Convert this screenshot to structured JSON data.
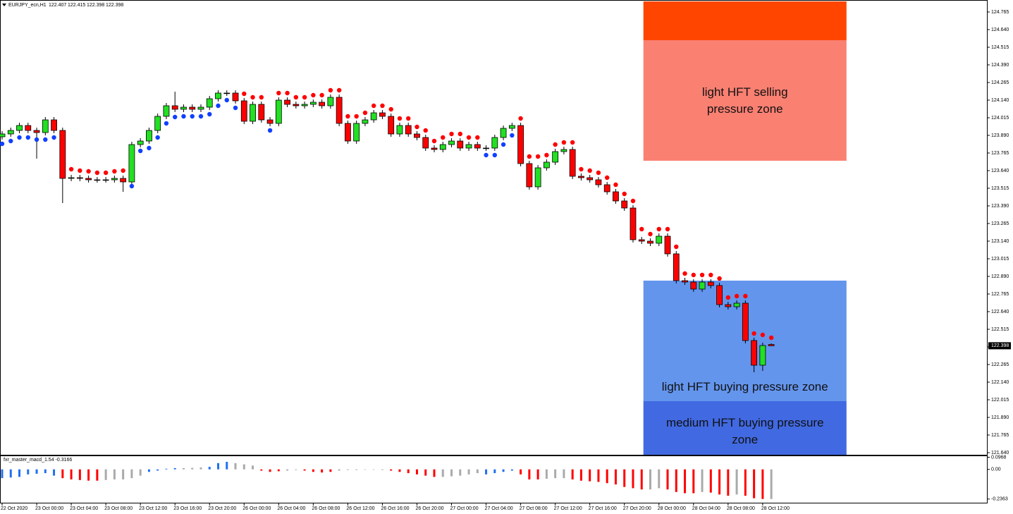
{
  "chart_data": [
    {
      "type": "candlestick",
      "title": "EURJPY_ecn,H1",
      "up_color": "#22e022",
      "down_color": "#ff0000",
      "open": [
        123.88,
        123.9,
        123.925,
        123.96,
        123.925,
        123.91,
        124.0,
        123.925,
        123.585,
        123.59,
        123.585,
        123.575,
        123.575,
        123.575,
        123.585,
        123.56,
        123.825,
        123.85,
        123.925,
        124.025,
        124.1,
        124.075,
        124.09,
        124.075,
        124.09,
        124.15,
        124.19,
        124.19,
        124.135,
        123.99,
        124.11,
        124.0,
        123.975,
        124.14,
        124.11,
        124.1,
        124.11,
        124.125,
        124.1,
        124.16,
        123.975,
        123.85,
        123.975,
        124.0,
        124.05,
        124.025,
        123.9,
        123.96,
        123.9,
        123.875,
        123.8,
        123.79,
        123.825,
        123.85,
        123.8,
        123.825,
        123.8,
        123.8,
        123.875,
        123.94,
        123.96,
        123.69,
        123.525,
        123.66,
        123.7,
        123.775,
        123.79,
        123.6,
        123.59,
        123.575,
        123.54,
        123.49,
        123.425,
        123.375,
        123.15,
        123.14,
        123.125,
        123.175,
        123.05,
        122.86,
        122.85,
        122.8,
        122.85,
        122.825,
        122.69,
        122.675,
        122.7,
        122.435,
        122.26,
        122.407
      ],
      "high": [
        123.92,
        123.945,
        123.98,
        123.98,
        123.945,
        124.02,
        124.02,
        123.945,
        123.61,
        123.61,
        123.605,
        123.595,
        123.595,
        123.605,
        123.605,
        123.845,
        123.87,
        123.945,
        124.045,
        124.12,
        124.2,
        124.11,
        124.11,
        124.11,
        124.17,
        124.21,
        124.21,
        124.21,
        124.155,
        124.13,
        124.13,
        124.02,
        124.16,
        124.16,
        124.13,
        124.13,
        124.145,
        124.145,
        124.18,
        124.18,
        123.995,
        123.995,
        124.02,
        124.07,
        124.07,
        124.045,
        123.98,
        123.98,
        123.92,
        123.895,
        123.82,
        123.845,
        123.87,
        123.87,
        123.845,
        123.845,
        123.82,
        123.895,
        123.96,
        123.98,
        123.98,
        123.71,
        123.68,
        123.72,
        123.795,
        123.81,
        123.81,
        123.62,
        123.61,
        123.595,
        123.56,
        123.51,
        123.445,
        123.395,
        123.17,
        123.16,
        123.195,
        123.195,
        123.07,
        122.88,
        122.87,
        122.87,
        122.87,
        122.845,
        122.71,
        122.72,
        122.72,
        122.455,
        122.42,
        122.415
      ],
      "low": [
        123.86,
        123.88,
        123.905,
        123.905,
        123.725,
        123.89,
        123.905,
        123.41,
        123.565,
        123.565,
        123.555,
        123.555,
        123.555,
        123.555,
        123.49,
        123.54,
        123.805,
        123.83,
        123.905,
        124.005,
        124.055,
        124.055,
        124.055,
        124.055,
        124.07,
        124.13,
        124.17,
        124.115,
        123.97,
        123.97,
        123.98,
        123.955,
        123.955,
        124.09,
        124.08,
        124.08,
        124.09,
        124.08,
        124.08,
        123.955,
        123.83,
        123.83,
        123.955,
        123.98,
        124.005,
        123.88,
        123.88,
        123.88,
        123.855,
        123.78,
        123.77,
        123.77,
        123.805,
        123.78,
        123.78,
        123.78,
        123.78,
        123.78,
        123.855,
        123.92,
        123.67,
        123.505,
        123.505,
        123.64,
        123.68,
        123.755,
        123.58,
        123.57,
        123.555,
        123.52,
        123.47,
        123.405,
        123.355,
        123.13,
        123.12,
        123.105,
        123.105,
        123.03,
        122.84,
        122.83,
        122.78,
        122.78,
        122.805,
        122.67,
        122.655,
        122.655,
        122.415,
        122.21,
        122.22,
        122.398
      ],
      "close": [
        123.9,
        123.925,
        123.96,
        123.925,
        123.91,
        124.0,
        123.925,
        123.585,
        123.59,
        123.585,
        123.575,
        123.575,
        123.575,
        123.585,
        123.56,
        123.825,
        123.85,
        123.925,
        124.025,
        124.1,
        124.075,
        124.09,
        124.075,
        124.09,
        124.15,
        124.19,
        124.19,
        124.135,
        123.99,
        124.11,
        124.0,
        123.975,
        124.14,
        124.11,
        124.1,
        124.11,
        124.125,
        124.1,
        124.16,
        123.975,
        123.85,
        123.975,
        124.0,
        124.05,
        124.025,
        123.9,
        123.96,
        123.9,
        123.875,
        123.8,
        123.79,
        123.825,
        123.85,
        123.8,
        123.825,
        123.8,
        123.8,
        123.875,
        123.94,
        123.96,
        123.69,
        123.525,
        123.66,
        123.7,
        123.775,
        123.79,
        123.6,
        123.59,
        123.575,
        123.54,
        123.49,
        123.425,
        123.375,
        123.15,
        123.14,
        123.125,
        123.175,
        123.05,
        122.86,
        122.85,
        122.8,
        122.85,
        122.825,
        122.69,
        122.675,
        122.7,
        122.435,
        122.26,
        122.4,
        122.398
      ],
      "dots": {
        "above_color": "#ff0000",
        "below_color": "#1040ff",
        "values": [
          123.83,
          123.85,
          123.875,
          123.875,
          123.86,
          123.86,
          123.875,
          123.78,
          123.65,
          123.64,
          123.635,
          123.625,
          123.625,
          123.635,
          123.64,
          123.53,
          123.78,
          123.8,
          123.875,
          123.975,
          124.02,
          124.025,
          124.025,
          124.025,
          124.04,
          124.1,
          124.14,
          124.085,
          124.185,
          124.16,
          124.16,
          123.925,
          124.19,
          124.19,
          124.16,
          124.16,
          124.175,
          124.175,
          124.21,
          124.21,
          124.025,
          124.025,
          124.05,
          124.1,
          124.1,
          124.075,
          124.01,
          124.01,
          123.95,
          123.925,
          123.85,
          123.875,
          123.9,
          123.9,
          123.875,
          123.875,
          123.75,
          123.75,
          123.825,
          123.89,
          124.01,
          123.74,
          123.74,
          123.75,
          123.825,
          123.84,
          123.84,
          123.65,
          123.64,
          123.625,
          123.59,
          123.54,
          123.475,
          123.425,
          123.225,
          123.19,
          123.225,
          123.225,
          123.1,
          122.91,
          122.9,
          122.9,
          122.9,
          122.875,
          122.74,
          122.75,
          122.75,
          122.485,
          122.475,
          122.455
        ]
      },
      "ylim": [
        121.625,
        124.85
      ],
      "yticks": [
        124.765,
        {
          "value": 124.64,
          "label": "124.640"
        },
        124.515,
        {
          "value": 124.39,
          "label": "124.390"
        },
        124.265,
        {
          "value": 124.14,
          "label": "124.140"
        },
        124.015,
        {
          "value": 123.89,
          "label": "123.890"
        },
        123.765,
        {
          "value": 123.64,
          "label": "123.640"
        },
        123.515,
        {
          "value": 123.39,
          "label": "123.390"
        },
        123.265,
        {
          "value": 123.14,
          "label": "123.140"
        },
        123.015,
        {
          "value": 122.89,
          "label": "122.890"
        },
        122.765,
        {
          "value": 122.64,
          "label": "122.640"
        },
        122.515,
        {
          "value": 122.39,
          "label": "122.390"
        },
        122.265,
        {
          "value": 122.14,
          "label": "122.140"
        },
        122.015,
        {
          "value": 121.89,
          "label": "121.890"
        },
        121.765,
        {
          "value": 121.64,
          "label": "121.640"
        }
      ],
      "xticks": [
        {
          "value": 0,
          "label": "22 Oct 2020"
        },
        {
          "value": 4,
          "label": "23 Oct 00:00"
        },
        {
          "value": 8,
          "label": "23 Oct 04:00"
        },
        {
          "value": 12,
          "label": "23 Oct 08:00"
        },
        {
          "value": 16,
          "label": "23 Oct 12:00"
        },
        {
          "value": 20,
          "label": "23 Oct 16:00"
        },
        {
          "value": 24,
          "label": "23 Oct 20:00"
        },
        {
          "value": 28,
          "label": "26 Oct 00:00"
        },
        {
          "value": 32,
          "label": "26 Oct 04:00"
        },
        {
          "value": 36,
          "label": "26 Oct 08:00"
        },
        {
          "value": 40,
          "label": "26 Oct 12:00"
        },
        {
          "value": 44,
          "label": "26 Oct 16:00"
        },
        {
          "value": 48,
          "label": "26 Oct 20:00"
        },
        {
          "value": 52,
          "label": "27 Oct 00:00"
        },
        {
          "value": 56,
          "label": "27 Oct 04:00"
        },
        {
          "value": 60,
          "label": "27 Oct 08:00"
        },
        {
          "value": 64,
          "label": "27 Oct 12:00"
        },
        {
          "value": 68,
          "label": "27 Oct 16:00"
        },
        {
          "value": 72,
          "label": "27 Oct 20:00"
        },
        {
          "value": 76,
          "label": "28 Oct 00:00"
        },
        {
          "value": 80,
          "label": "28 Oct 04:00"
        },
        {
          "value": 84,
          "label": "28 Oct 08:00"
        },
        {
          "value": 88,
          "label": "28 Oct 12:00"
        }
      ],
      "zones": [
        {
          "color": "#ff4500",
          "ylim": [
            124.565,
            124.84
          ],
          "xrange": [
            74.2,
            97.7
          ]
        },
        {
          "label": "light HFT selling pressure zone",
          "color": "#fa8072",
          "ylim": [
            123.71,
            124.565
          ],
          "xrange": [
            74.2,
            97.7
          ]
        },
        {
          "label": "light HFT buying pressure zone",
          "color": "#6495ed",
          "ylim": [
            122.005,
            122.86
          ],
          "xrange": [
            74.2,
            97.7
          ]
        },
        {
          "label": "medium HFT buying pressure zone",
          "color": "#4169e1",
          "ylim": [
            121.625,
            122.005
          ],
          "xrange": [
            74.2,
            97.7
          ]
        }
      ]
    },
    {
      "type": "bar",
      "title": "fxr_master_macd_1.54 -0.3166",
      "values": [
        -0.07,
        -0.065,
        -0.06,
        -0.04,
        -0.035,
        -0.03,
        -0.05,
        -0.07,
        -0.08,
        -0.085,
        -0.09,
        -0.09,
        -0.085,
        -0.08,
        -0.08,
        -0.07,
        -0.05,
        -0.02,
        -0.01,
        0.005,
        0.01,
        0.01,
        0.012,
        0.015,
        0.02,
        0.05,
        0.06,
        0.05,
        0.04,
        0.03,
        -0.01,
        -0.02,
        -0.015,
        -0.01,
        -0.005,
        -0.01,
        -0.02,
        -0.025,
        -0.02,
        -0.01,
        -0.005,
        -0.005,
        -0.003,
        -0.003,
        -0.005,
        -0.01,
        -0.02,
        -0.03,
        -0.04,
        -0.05,
        -0.06,
        -0.06,
        -0.055,
        -0.05,
        -0.04,
        -0.03,
        -0.04,
        -0.03,
        -0.02,
        -0.01,
        -0.04,
        -0.08,
        -0.08,
        -0.075,
        -0.07,
        -0.07,
        -0.08,
        -0.09,
        -0.095,
        -0.1,
        -0.11,
        -0.12,
        -0.14,
        -0.15,
        -0.16,
        -0.16,
        -0.15,
        -0.16,
        -0.18,
        -0.19,
        -0.19,
        -0.18,
        -0.185,
        -0.2,
        -0.21,
        -0.2,
        -0.21,
        -0.23,
        -0.236,
        -0.236
      ],
      "colors": [
        "#2070f0",
        "#2070f0",
        "#2070f0",
        "#2070f0",
        "#2070f0",
        "#2070f0",
        "#2070f0",
        "#f00",
        "#f00",
        "#f00",
        "#f00",
        "#f00",
        "#aaa",
        "#aaa",
        "#aaa",
        "#aaa",
        "#aaa",
        "#2070f0",
        "#2070f0",
        "#2070f0",
        "#2070f0",
        "#aaa",
        "#aaa",
        "#aaa",
        "#2070f0",
        "#2070f0",
        "#2070f0",
        "#aaa",
        "#aaa",
        "#aaa",
        "#f00",
        "#f00",
        "#f00",
        "#aaa",
        "#aaa",
        "#f00",
        "#f00",
        "#f00",
        "#f00",
        "#aaa",
        "#aaa",
        "#aaa",
        "#aaa",
        "#aaa",
        "#aaa",
        "#f00",
        "#f00",
        "#f00",
        "#f00",
        "#f00",
        "#f00",
        "#aaa",
        "#aaa",
        "#aaa",
        "#aaa",
        "#aaa",
        "#2070f0",
        "#2070f0",
        "#2070f0",
        "#2070f0",
        "#f00",
        "#f00",
        "#f00",
        "#aaa",
        "#aaa",
        "#aaa",
        "#f00",
        "#f00",
        "#f00",
        "#f00",
        "#f00",
        "#f00",
        "#f00",
        "#f00",
        "#f00",
        "#aaa",
        "#aaa",
        "#f00",
        "#f00",
        "#f00",
        "#f00",
        "#aaa",
        "#f00",
        "#f00",
        "#f00",
        "#aaa",
        "#f00",
        "#f00",
        "#f00",
        "#aaa"
      ],
      "ylim": [
        -0.26,
        0.105
      ],
      "yticks": [
        0.0968,
        {
          "value": 0,
          "label": "0.00"
        },
        -0.2363
      ]
    }
  ]
}
